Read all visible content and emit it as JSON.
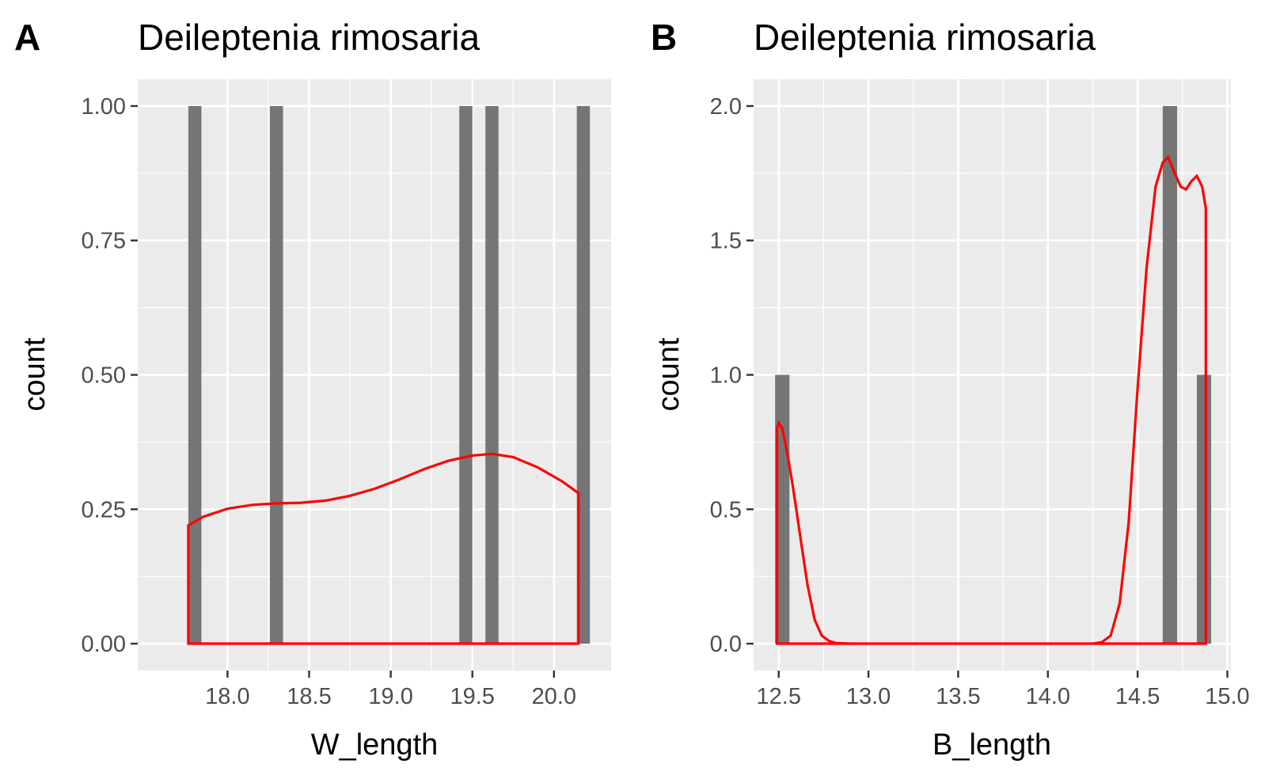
{
  "chart_data": [
    {
      "type": "bar",
      "panel_tag": "A",
      "title": "Deileptenia rimosaria",
      "xlabel": "W_length",
      "ylabel": "count",
      "xlim": [
        17.45,
        20.35
      ],
      "ylim": [
        -0.05,
        1.05
      ],
      "xticks": [
        18.0,
        18.5,
        19.0,
        19.5,
        20.0
      ],
      "xtick_labels": [
        "18.0",
        "18.5",
        "19.0",
        "19.5",
        "20.0"
      ],
      "yticks": [
        0,
        0.25,
        0.5,
        0.75,
        1.0
      ],
      "ytick_labels": [
        "0.00",
        "0.25",
        "0.50",
        "0.75",
        "1.00"
      ],
      "bar_width": 0.08,
      "bars": [
        {
          "x": 17.8,
          "count": 1
        },
        {
          "x": 18.3,
          "count": 1
        },
        {
          "x": 19.46,
          "count": 1
        },
        {
          "x": 19.62,
          "count": 1
        },
        {
          "x": 20.18,
          "count": 1
        }
      ],
      "density": {
        "x": [
          17.76,
          17.85,
          18.0,
          18.15,
          18.3,
          18.45,
          18.6,
          18.75,
          18.9,
          19.05,
          19.2,
          19.35,
          19.5,
          19.62,
          19.75,
          19.9,
          20.05,
          20.15
        ],
        "y": [
          0.22,
          0.236,
          0.251,
          0.258,
          0.261,
          0.262,
          0.266,
          0.275,
          0.288,
          0.305,
          0.324,
          0.34,
          0.35,
          0.353,
          0.347,
          0.328,
          0.302,
          0.28
        ]
      },
      "colors": {
        "bar": "#757575",
        "density": "#ff0000",
        "panel": "#ebebeb",
        "grid": "#ffffff"
      },
      "grid": true
    },
    {
      "type": "bar",
      "panel_tag": "B",
      "title": "Deileptenia rimosaria",
      "xlabel": "B_length",
      "ylabel": "count",
      "xlim": [
        12.36,
        15.02
      ],
      "ylim": [
        -0.1,
        2.1
      ],
      "xticks": [
        12.5,
        13.0,
        13.5,
        14.0,
        14.5,
        15.0
      ],
      "xtick_labels": [
        "12.5",
        "13.0",
        "13.5",
        "14.0",
        "14.5",
        "15.0"
      ],
      "yticks": [
        0,
        0.5,
        1.0,
        1.5,
        2.0
      ],
      "ytick_labels": [
        "0.0",
        "0.5",
        "1.0",
        "1.5",
        "2.0"
      ],
      "bar_width": 0.08,
      "bars": [
        {
          "x": 12.52,
          "count": 1
        },
        {
          "x": 14.68,
          "count": 2
        },
        {
          "x": 14.87,
          "count": 1
        }
      ],
      "density": {
        "x": [
          12.49,
          12.5,
          12.52,
          12.55,
          12.58,
          12.62,
          12.66,
          12.7,
          12.74,
          12.78,
          12.82,
          12.9,
          13.0,
          14.0,
          14.25,
          14.3,
          14.35,
          14.4,
          14.45,
          14.5,
          14.55,
          14.6,
          14.64,
          14.67,
          14.7,
          14.74,
          14.77,
          14.8,
          14.83,
          14.86,
          14.88
        ],
        "y": [
          0.8,
          0.82,
          0.8,
          0.7,
          0.58,
          0.4,
          0.22,
          0.09,
          0.03,
          0.01,
          0.002,
          0.0,
          0.0,
          0.0,
          0.0,
          0.005,
          0.03,
          0.15,
          0.45,
          0.95,
          1.4,
          1.7,
          1.79,
          1.81,
          1.76,
          1.7,
          1.69,
          1.72,
          1.74,
          1.7,
          1.62
        ]
      },
      "colors": {
        "bar": "#757575",
        "density": "#ff0000",
        "panel": "#ebebeb",
        "grid": "#ffffff"
      },
      "grid": true
    }
  ]
}
